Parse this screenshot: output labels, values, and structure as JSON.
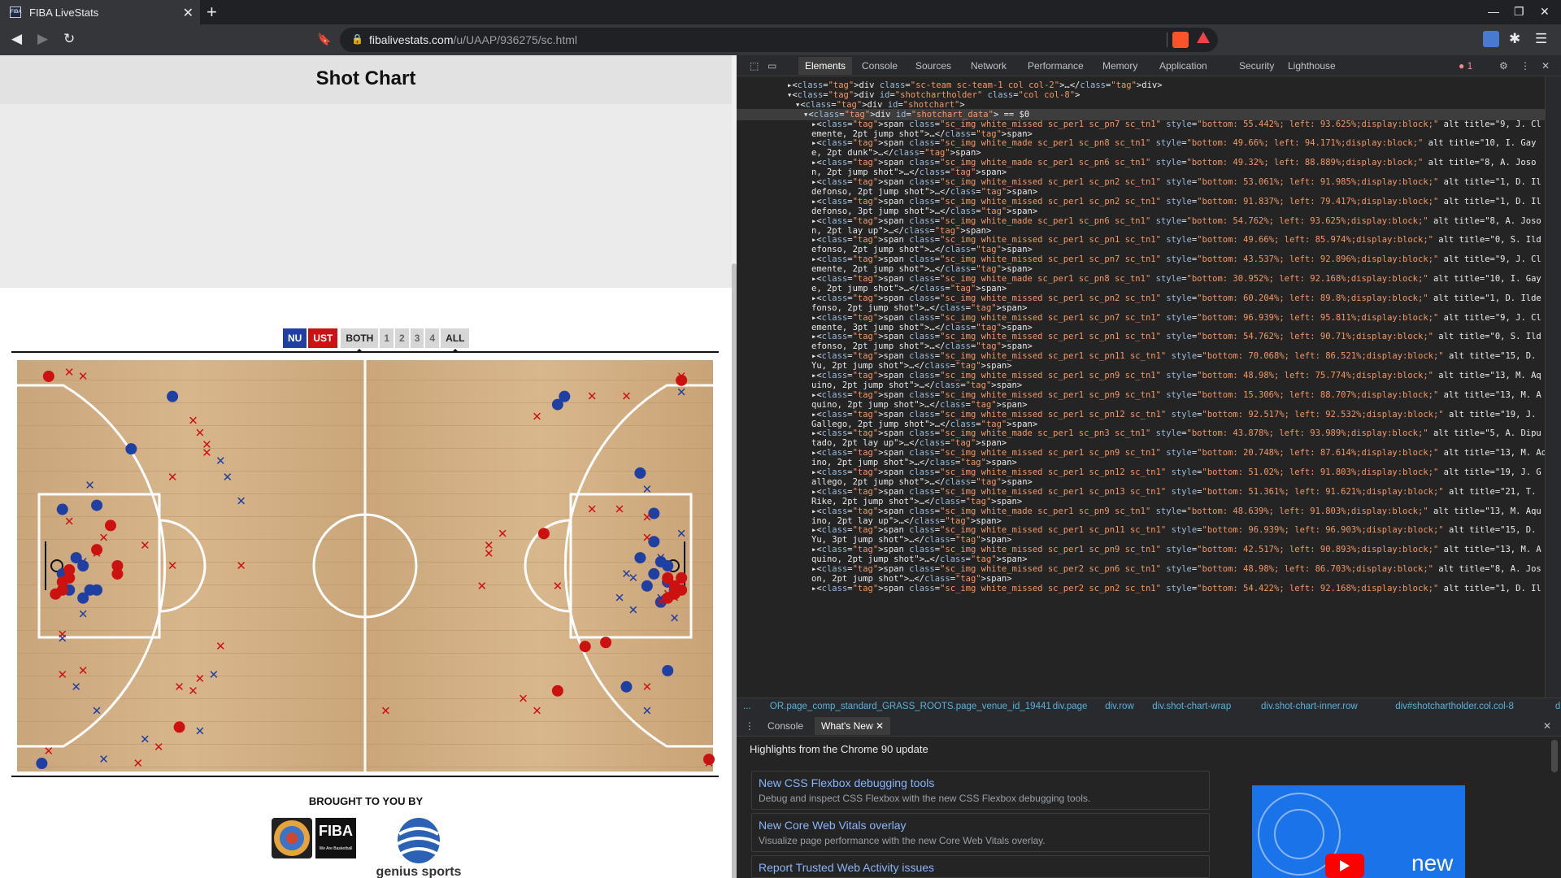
{
  "browser": {
    "tab_title": "FIBA LiveStats",
    "favicon": "FIBA",
    "url_host": "fibalivestats.com",
    "url_path": "/u/UAAP/936275/sc.html"
  },
  "page": {
    "title": "Shot Chart",
    "filters": {
      "team1": "NU",
      "team2": "UST",
      "both": "BOTH",
      "q1": "1",
      "q2": "2",
      "q3": "3",
      "q4": "4",
      "all": "ALL"
    },
    "brought_by": "BROUGHT TO YOU BY",
    "fiba_logo": "FIBA",
    "fiba_tagline": "We Are Basketball",
    "genius_logo": "genius sports",
    "colors": {
      "team1": "#1f3fa3",
      "team2": "#cc1111"
    }
  },
  "devtools": {
    "tabs": [
      "Elements",
      "Console",
      "Sources",
      "Network",
      "Performance",
      "Memory",
      "Application",
      "Security",
      "Lighthouse"
    ],
    "error_count": "1",
    "code_lines": [
      {
        "t": "▸<div class=\"sc-team sc-team-1 col col-2\">…</div>",
        "indent": 0
      },
      {
        "t": "▾<div id=\"shotchartholder\" class=\"col col-8\">",
        "indent": 0
      },
      {
        "t": "▾<div id=\"shotchart\">",
        "indent": 1
      },
      {
        "t": "▾<div id=\"shotchart_data\"> == $0",
        "indent": 2
      },
      {
        "t": "▸<span class=\"sc_img white_missed sc_per1 sc_pn7 sc_tn1\" style=\"bottom: 55.442%; left: 93.625%;display:block;\" alt title=\"9, J. Cl",
        "indent": 3
      },
      {
        "t": "emente, 2pt jump shot\">…</span>",
        "indent": 3
      },
      {
        "t": "▸<span class=\"sc_img white_made sc_per1 sc_pn8 sc_tn1\" style=\"bottom: 49.66%; left: 94.171%;display:block;\" alt title=\"10, I. Gay",
        "indent": 3
      },
      {
        "t": "e, 2pt dunk\">…</span>",
        "indent": 3
      },
      {
        "t": "▸<span class=\"sc_img white_made sc_per1 sc_pn6 sc_tn1\" style=\"bottom: 49.32%; left: 88.889%;display:block;\" alt title=\"8, A. Joso",
        "indent": 3
      },
      {
        "t": "n, 2pt jump shot\">…</span>",
        "indent": 3
      },
      {
        "t": "▸<span class=\"sc_img white_missed sc_per1 sc_pn2 sc_tn1\" style=\"bottom: 53.061%; left: 91.985%;display:block;\" alt title=\"1, D. Il",
        "indent": 3
      },
      {
        "t": "defonso, 2pt jump shot\">…</span>",
        "indent": 3
      },
      {
        "t": "▸<span class=\"sc_img white_missed sc_per1 sc_pn2 sc_tn1\" style=\"bottom: 91.837%; left: 79.417%;display:block;\" alt title=\"1, D. Il",
        "indent": 3
      },
      {
        "t": "defonso, 3pt jump shot\">…</span>",
        "indent": 3
      },
      {
        "t": "▸<span class=\"sc_img white_made sc_per1 sc_pn6 sc_tn1\" style=\"bottom: 54.762%; left: 93.625%;display:block;\" alt title=\"8, A. Joso",
        "indent": 3
      },
      {
        "t": "n, 2pt lay up\">…</span>",
        "indent": 3
      },
      {
        "t": "▸<span class=\"sc_img white_missed sc_per1 sc_pn1 sc_tn1\" style=\"bottom: 49.66%; left: 85.974%;display:block;\" alt title=\"0, S. Ild",
        "indent": 3
      },
      {
        "t": "efonso, 2pt jump shot\">…</span>",
        "indent": 3
      },
      {
        "t": "▸<span class=\"sc_img white_missed sc_per1 sc_pn7 sc_tn1\" style=\"bottom: 43.537%; left: 92.896%;display:block;\" alt title=\"9, J. Cl",
        "indent": 3
      },
      {
        "t": "emente, 2pt jump shot\">…</span>",
        "indent": 3
      },
      {
        "t": "▸<span class=\"sc_img white_made sc_per1 sc_pn8 sc_tn1\" style=\"bottom: 30.952%; left: 92.168%;display:block;\" alt title=\"10, I. Gay",
        "indent": 3
      },
      {
        "t": "e, 2pt jump shot\">…</span>",
        "indent": 3
      },
      {
        "t": "▸<span class=\"sc_img white_missed sc_per1 sc_pn2 sc_tn1\" style=\"bottom: 60.204%; left: 89.8%;display:block;\" alt title=\"1, D. Ilde",
        "indent": 3
      },
      {
        "t": "fonso, 2pt jump shot\">…</span>",
        "indent": 3
      },
      {
        "t": "▸<span class=\"sc_img white_missed sc_per1 sc_pn7 sc_tn1\" style=\"bottom: 96.939%; left: 95.811%;display:block;\" alt title=\"9, J. Cl",
        "indent": 3
      },
      {
        "t": "emente, 3pt jump shot\">…</span>",
        "indent": 3
      },
      {
        "t": "▸<span class=\"sc_img white_missed sc_per1 sc_pn1 sc_tn1\" style=\"bottom: 54.762%; left: 90.71%;display:block;\" alt title=\"0, S. Ild",
        "indent": 3
      },
      {
        "t": "efonso, 2pt jump shot\">…</span>",
        "indent": 3
      },
      {
        "t": "▸<span class=\"sc_img white_missed sc_per1 sc_pn11 sc_tn1\" style=\"bottom: 70.068%; left: 86.521%;display:block;\" alt title=\"15, D.",
        "indent": 3
      },
      {
        "t": "Yu, 2pt jump shot\">…</span>",
        "indent": 3
      },
      {
        "t": "▸<span class=\"sc_img white_missed sc_per1 sc_pn9 sc_tn1\" style=\"bottom: 48.98%; left: 75.774%;display:block;\" alt title=\"13, M. Aq",
        "indent": 3
      },
      {
        "t": "uino, 2pt jump shot\">…</span>",
        "indent": 3
      },
      {
        "t": "▸<span class=\"sc_img white_missed sc_per1 sc_pn9 sc_tn1\" style=\"bottom: 15.306%; left: 88.707%;display:block;\" alt title=\"13, M. A",
        "indent": 3
      },
      {
        "t": "quino, 2pt jump shot\">…</span>",
        "indent": 3
      },
      {
        "t": "▸<span class=\"sc_img white_missed sc_per1 sc_pn12 sc_tn1\" style=\"bottom: 92.517%; left: 92.532%;display:block;\" alt title=\"19, J.",
        "indent": 3
      },
      {
        "t": "Gallego, 2pt jump shot\">…</span>",
        "indent": 3
      },
      {
        "t": "▸<span class=\"sc_img white_made sc_per1 sc_pn3 sc_tn1\" style=\"bottom: 43.878%; left: 93.989%;display:block;\" alt title=\"5, A. Dipu",
        "indent": 3
      },
      {
        "t": "tado, 2pt lay up\">…</span>",
        "indent": 3
      },
      {
        "t": "▸<span class=\"sc_img white_missed sc_per1 sc_pn9 sc_tn1\" style=\"bottom: 20.748%; left: 87.614%;display:block;\" alt title=\"13, M. Aqu",
        "indent": 3
      },
      {
        "t": "ino, 2pt jump shot\">…</span>",
        "indent": 3
      },
      {
        "t": "▸<span class=\"sc_img white_missed sc_per1 sc_pn12 sc_tn1\" style=\"bottom: 51.02%; left: 91.803%;display:block;\" alt title=\"19, J. G",
        "indent": 3
      },
      {
        "t": "allego, 2pt jump shot\">…</span>",
        "indent": 3
      },
      {
        "t": "▸<span class=\"sc_img white_missed sc_per1 sc_pn13 sc_tn1\" style=\"bottom: 51.361%; left: 91.621%;display:block;\" alt title=\"21, T.",
        "indent": 3
      },
      {
        "t": "Rike, 2pt jump shot\">…</span>",
        "indent": 3
      },
      {
        "t": "▸<span class=\"sc_img white_made sc_per1 sc_pn9 sc_tn1\" style=\"bottom: 48.639%; left: 91.803%;display:block;\" alt title=\"13, M. Aqu",
        "indent": 3
      },
      {
        "t": "ino, 2pt lay up\">…</span>",
        "indent": 3
      },
      {
        "t": "▸<span class=\"sc_img white_missed sc_per1 sc_pn11 sc_tn1\" style=\"bottom: 96.939%; left: 96.903%;display:block;\" alt title=\"15, D.",
        "indent": 3
      },
      {
        "t": "Yu, 3pt jump shot\">…</span>",
        "indent": 3
      },
      {
        "t": "▸<span class=\"sc_img white_missed sc_per1 sc_pn9 sc_tn1\" style=\"bottom: 42.517%; left: 90.893%;display:block;\" alt title=\"13, M. A",
        "indent": 3
      },
      {
        "t": "quino, 2pt jump shot\">…</span>",
        "indent": 3
      },
      {
        "t": "▸<span class=\"sc_img white_missed sc_per2 sc_pn6 sc_tn1\" style=\"bottom: 48.98%; left: 86.703%;display:block;\" alt title=\"8, A. Jos",
        "indent": 3
      },
      {
        "t": "on, 2pt jump shot\">…</span>",
        "indent": 3
      },
      {
        "t": "▸<span class=\"sc_img white_missed sc_per2 sc_pn2 sc_tn1\" style=\"bottom: 54.422%; left: 92.168%;display:block;\" alt title=\"1, D. Il",
        "indent": 3
      }
    ],
    "breadcrumbs": [
      "...",
      "OR.page_comp_standard_GRASS_ROOTS.page_venue_id_19441",
      "div.page",
      "div.row",
      "div.shot-chart-wrap",
      "div.shot-chart-inner.row",
      "div#shotchartholder.col.col-8",
      "div#shot"
    ],
    "drawer_tabs": [
      "Console",
      "What's New"
    ],
    "whats_new_title": "Highlights from the Chrome 90 update",
    "cards": [
      {
        "title": "New CSS Flexbox debugging tools",
        "desc": "Debug and inspect CSS Flexbox with the new CSS Flexbox debugging tools."
      },
      {
        "title": "New Core Web Vitals overlay",
        "desc": "Visualize page performance with the new Core Web Vitals overlay."
      },
      {
        "title": "Report Trusted Web Activity issues",
        "desc": ""
      }
    ],
    "video_badge": "new"
  },
  "chart_data": {
    "type": "scatter",
    "title": "Shot Chart",
    "legend": [
      "NU",
      "UST"
    ],
    "x_range": [
      0,
      100
    ],
    "y_range": [
      0,
      100
    ],
    "series": [
      {
        "name": "NU",
        "color": "#1f3fa3",
        "made": [
          [
            22,
            92
          ],
          [
            16,
            79
          ],
          [
            6,
            64
          ],
          [
            11,
            65
          ],
          [
            9,
            50
          ],
          [
            10,
            44
          ],
          [
            9,
            42
          ],
          [
            8,
            52
          ],
          [
            6,
            48
          ],
          [
            7,
            44
          ],
          [
            11,
            44
          ],
          [
            79,
            92
          ],
          [
            78,
            90
          ],
          [
            90,
            73
          ],
          [
            92,
            63
          ],
          [
            92,
            56
          ],
          [
            90,
            52
          ],
          [
            91,
            45
          ],
          [
            93,
            51
          ],
          [
            92,
            48
          ],
          [
            93,
            41
          ],
          [
            94,
            46
          ],
          [
            94,
            50
          ],
          [
            94,
            46
          ],
          [
            95,
            44
          ],
          [
            94,
            24
          ],
          [
            88,
            20
          ],
          [
            3,
            1
          ]
        ],
        "missed": [
          [
            96,
            93
          ],
          [
            30,
            72
          ],
          [
            29,
            76
          ],
          [
            32,
            66
          ],
          [
            10,
            70
          ],
          [
            9,
            51
          ],
          [
            9,
            38
          ],
          [
            6,
            32
          ],
          [
            8,
            20
          ],
          [
            28,
            23
          ],
          [
            26,
            9
          ],
          [
            12,
            2
          ],
          [
            3,
            1
          ],
          [
            89,
            39
          ],
          [
            89,
            47
          ],
          [
            96,
            58
          ],
          [
            91,
            69
          ],
          [
            93,
            52
          ],
          [
            94,
            42
          ],
          [
            87,
            42
          ],
          [
            91,
            14
          ],
          [
            18,
            7
          ],
          [
            88,
            48
          ],
          [
            93,
            42
          ],
          [
            95,
            37
          ],
          [
            11,
            14
          ]
        ]
      },
      {
        "name": "UST",
        "color": "#cc1111",
        "made": [
          [
            4,
            97
          ],
          [
            6,
            46
          ],
          [
            6,
            44
          ],
          [
            5,
            43
          ],
          [
            14,
            50
          ],
          [
            7,
            47
          ],
          [
            14,
            48
          ],
          [
            7,
            49
          ],
          [
            11,
            54
          ],
          [
            13,
            60
          ],
          [
            96,
            96
          ],
          [
            76,
            58
          ],
          [
            94,
            47
          ],
          [
            95,
            43
          ],
          [
            95,
            45
          ],
          [
            96,
            47
          ],
          [
            96,
            44
          ],
          [
            94,
            42
          ],
          [
            82,
            30
          ],
          [
            85,
            31
          ],
          [
            78,
            19
          ],
          [
            100,
            2
          ],
          [
            23,
            10
          ]
        ],
        "missed": [
          [
            7,
            98
          ],
          [
            9,
            97
          ],
          [
            25,
            86
          ],
          [
            26,
            83
          ],
          [
            27,
            80
          ],
          [
            27,
            78
          ],
          [
            22,
            72
          ],
          [
            7,
            61
          ],
          [
            12,
            57
          ],
          [
            11,
            53
          ],
          [
            18,
            55
          ],
          [
            22,
            50
          ],
          [
            32,
            50
          ],
          [
            83,
            92
          ],
          [
            75,
            87
          ],
          [
            88,
            92
          ],
          [
            70,
            58
          ],
          [
            68,
            55
          ],
          [
            68,
            53
          ],
          [
            67,
            45
          ],
          [
            78,
            45
          ],
          [
            83,
            64
          ],
          [
            87,
            64
          ],
          [
            91,
            62
          ],
          [
            91,
            57
          ],
          [
            96,
            97
          ],
          [
            94,
            46
          ],
          [
            94,
            43
          ],
          [
            6,
            33
          ],
          [
            9,
            24
          ],
          [
            29,
            30
          ],
          [
            26,
            22
          ],
          [
            25,
            19
          ],
          [
            23,
            20
          ],
          [
            20,
            5
          ],
          [
            17,
            1
          ],
          [
            6,
            23
          ],
          [
            73,
            17
          ],
          [
            75,
            14
          ],
          [
            91,
            20
          ],
          [
            93,
            41
          ],
          [
            95,
            42
          ],
          [
            4,
            4
          ],
          [
            53,
            14
          ],
          [
            100,
            1
          ]
        ]
      }
    ]
  }
}
